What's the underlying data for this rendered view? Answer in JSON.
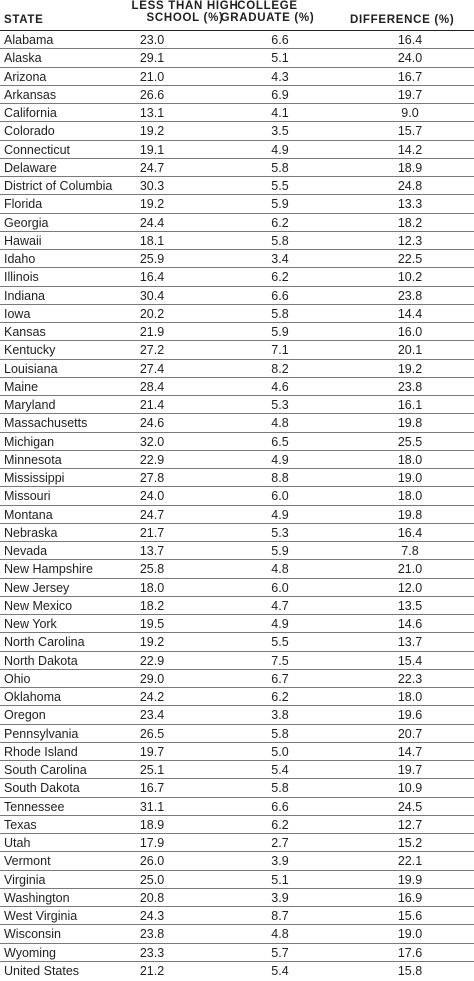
{
  "table": {
    "headers": {
      "state": "STATE",
      "less_than_hs_line1": "LESS THAN HIGH",
      "less_than_hs_line2": "SCHOOL (%)",
      "college_line1": "COLLEGE",
      "college_line2": "GRADUATE (%)",
      "difference": "DIFFERENCE (%)"
    },
    "rows": [
      {
        "state": "Alabama",
        "less_than_hs": "23.0",
        "college": "6.6",
        "difference": "16.4"
      },
      {
        "state": "Alaska",
        "less_than_hs": "29.1",
        "college": "5.1",
        "difference": "24.0"
      },
      {
        "state": "Arizona",
        "less_than_hs": "21.0",
        "college": "4.3",
        "difference": "16.7"
      },
      {
        "state": "Arkansas",
        "less_than_hs": "26.6",
        "college": "6.9",
        "difference": "19.7"
      },
      {
        "state": "California",
        "less_than_hs": "13.1",
        "college": "4.1",
        "difference": "9.0"
      },
      {
        "state": "Colorado",
        "less_than_hs": "19.2",
        "college": "3.5",
        "difference": "15.7"
      },
      {
        "state": "Connecticut",
        "less_than_hs": "19.1",
        "college": "4.9",
        "difference": "14.2"
      },
      {
        "state": "Delaware",
        "less_than_hs": "24.7",
        "college": "5.8",
        "difference": "18.9"
      },
      {
        "state": "District of Columbia",
        "less_than_hs": "30.3",
        "college": "5.5",
        "difference": "24.8"
      },
      {
        "state": "Florida",
        "less_than_hs": "19.2",
        "college": "5.9",
        "difference": "13.3"
      },
      {
        "state": "Georgia",
        "less_than_hs": "24.4",
        "college": "6.2",
        "difference": "18.2"
      },
      {
        "state": "Hawaii",
        "less_than_hs": "18.1",
        "college": "5.8",
        "difference": "12.3"
      },
      {
        "state": "Idaho",
        "less_than_hs": "25.9",
        "college": "3.4",
        "difference": "22.5"
      },
      {
        "state": "Illinois",
        "less_than_hs": "16.4",
        "college": "6.2",
        "difference": "10.2"
      },
      {
        "state": "Indiana",
        "less_than_hs": "30.4",
        "college": "6.6",
        "difference": "23.8"
      },
      {
        "state": "Iowa",
        "less_than_hs": "20.2",
        "college": "5.8",
        "difference": "14.4"
      },
      {
        "state": "Kansas",
        "less_than_hs": "21.9",
        "college": "5.9",
        "difference": "16.0"
      },
      {
        "state": "Kentucky",
        "less_than_hs": "27.2",
        "college": "7.1",
        "difference": "20.1"
      },
      {
        "state": "Louisiana",
        "less_than_hs": "27.4",
        "college": "8.2",
        "difference": "19.2"
      },
      {
        "state": "Maine",
        "less_than_hs": "28.4",
        "college": "4.6",
        "difference": "23.8"
      },
      {
        "state": "Maryland",
        "less_than_hs": "21.4",
        "college": "5.3",
        "difference": "16.1"
      },
      {
        "state": "Massachusetts",
        "less_than_hs": "24.6",
        "college": "4.8",
        "difference": "19.8"
      },
      {
        "state": "Michigan",
        "less_than_hs": "32.0",
        "college": "6.5",
        "difference": "25.5"
      },
      {
        "state": "Minnesota",
        "less_than_hs": "22.9",
        "college": "4.9",
        "difference": "18.0"
      },
      {
        "state": "Mississippi",
        "less_than_hs": "27.8",
        "college": "8.8",
        "difference": "19.0"
      },
      {
        "state": "Missouri",
        "less_than_hs": "24.0",
        "college": "6.0",
        "difference": "18.0"
      },
      {
        "state": "Montana",
        "less_than_hs": "24.7",
        "college": "4.9",
        "difference": "19.8"
      },
      {
        "state": "Nebraska",
        "less_than_hs": "21.7",
        "college": "5.3",
        "difference": "16.4"
      },
      {
        "state": "Nevada",
        "less_than_hs": "13.7",
        "college": "5.9",
        "difference": "7.8"
      },
      {
        "state": "New Hampshire",
        "less_than_hs": "25.8",
        "college": "4.8",
        "difference": "21.0"
      },
      {
        "state": "New Jersey",
        "less_than_hs": "18.0",
        "college": "6.0",
        "difference": "12.0"
      },
      {
        "state": "New Mexico",
        "less_than_hs": "18.2",
        "college": "4.7",
        "difference": "13.5"
      },
      {
        "state": "New York",
        "less_than_hs": "19.5",
        "college": "4.9",
        "difference": "14.6"
      },
      {
        "state": "North Carolina",
        "less_than_hs": "19.2",
        "college": "5.5",
        "difference": "13.7"
      },
      {
        "state": "North Dakota",
        "less_than_hs": "22.9",
        "college": "7.5",
        "difference": "15.4"
      },
      {
        "state": "Ohio",
        "less_than_hs": "29.0",
        "college": "6.7",
        "difference": "22.3"
      },
      {
        "state": "Oklahoma",
        "less_than_hs": "24.2",
        "college": "6.2",
        "difference": "18.0"
      },
      {
        "state": "Oregon",
        "less_than_hs": "23.4",
        "college": "3.8",
        "difference": "19.6"
      },
      {
        "state": "Pennsylvania",
        "less_than_hs": "26.5",
        "college": "5.8",
        "difference": "20.7"
      },
      {
        "state": "Rhode Island",
        "less_than_hs": "19.7",
        "college": "5.0",
        "difference": "14.7"
      },
      {
        "state": "South Carolina",
        "less_than_hs": "25.1",
        "college": "5.4",
        "difference": "19.7"
      },
      {
        "state": "South Dakota",
        "less_than_hs": "16.7",
        "college": "5.8",
        "difference": "10.9"
      },
      {
        "state": "Tennessee",
        "less_than_hs": "31.1",
        "college": "6.6",
        "difference": "24.5"
      },
      {
        "state": "Texas",
        "less_than_hs": "18.9",
        "college": "6.2",
        "difference": "12.7"
      },
      {
        "state": "Utah",
        "less_than_hs": "17.9",
        "college": "2.7",
        "difference": "15.2"
      },
      {
        "state": "Vermont",
        "less_than_hs": "26.0",
        "college": "3.9",
        "difference": "22.1"
      },
      {
        "state": "Virginia",
        "less_than_hs": "25.0",
        "college": "5.1",
        "difference": "19.9"
      },
      {
        "state": "Washington",
        "less_than_hs": "20.8",
        "college": "3.9",
        "difference": "16.9"
      },
      {
        "state": "West Virginia",
        "less_than_hs": "24.3",
        "college": "8.7",
        "difference": "15.6"
      },
      {
        "state": "Wisconsin",
        "less_than_hs": "23.8",
        "college": "4.8",
        "difference": "19.0"
      },
      {
        "state": "Wyoming",
        "less_than_hs": "23.3",
        "college": "5.7",
        "difference": "17.6"
      },
      {
        "state": "United States",
        "less_than_hs": "21.2",
        "college": "5.4",
        "difference": "15.8"
      }
    ]
  }
}
